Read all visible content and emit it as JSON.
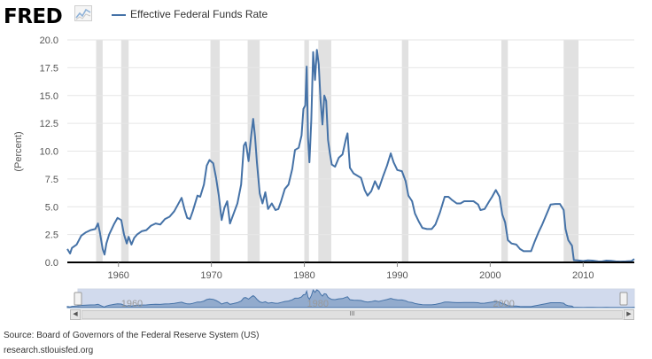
{
  "header": {
    "logo_text": "FRED",
    "logo_icon": "line-chart-icon",
    "legend_label": "Effective Federal Funds Rate",
    "legend_color": "#4572A7"
  },
  "chart_data": {
    "type": "line",
    "title": "",
    "ylabel": "(Percent)",
    "xlabel": "",
    "xlim": [
      1954.5,
      2015.5
    ],
    "ylim": [
      0,
      20
    ],
    "yticks": [
      "0.0",
      "2.5",
      "5.0",
      "7.5",
      "10.0",
      "12.5",
      "15.0",
      "17.5",
      "20.0"
    ],
    "xticks": [
      "1960",
      "1970",
      "1980",
      "1990",
      "2000",
      "2010"
    ],
    "grid": "horizontal",
    "recessions": [
      [
        1957.6,
        1958.3
      ],
      [
        1960.3,
        1961.1
      ],
      [
        1969.9,
        1970.9
      ],
      [
        1973.9,
        1975.2
      ],
      [
        1980.0,
        1980.5
      ],
      [
        1981.5,
        1982.9
      ],
      [
        1990.5,
        1991.2
      ],
      [
        2001.2,
        2001.9
      ],
      [
        2007.9,
        2009.5
      ]
    ],
    "series": [
      {
        "name": "Effective Federal Funds Rate",
        "color": "#4572A7",
        "points": [
          [
            1954.5,
            1.2
          ],
          [
            1954.8,
            0.8
          ],
          [
            1955.0,
            1.3
          ],
          [
            1955.5,
            1.6
          ],
          [
            1956.0,
            2.4
          ],
          [
            1956.5,
            2.7
          ],
          [
            1957.0,
            2.9
          ],
          [
            1957.5,
            3.0
          ],
          [
            1957.8,
            3.5
          ],
          [
            1958.0,
            2.7
          ],
          [
            1958.3,
            1.2
          ],
          [
            1958.5,
            0.7
          ],
          [
            1958.7,
            1.7
          ],
          [
            1959.0,
            2.5
          ],
          [
            1959.5,
            3.4
          ],
          [
            1959.9,
            4.0
          ],
          [
            1960.3,
            3.8
          ],
          [
            1960.6,
            2.5
          ],
          [
            1960.9,
            1.7
          ],
          [
            1961.1,
            2.3
          ],
          [
            1961.4,
            1.6
          ],
          [
            1961.7,
            2.2
          ],
          [
            1962.0,
            2.5
          ],
          [
            1962.5,
            2.8
          ],
          [
            1963.0,
            2.9
          ],
          [
            1963.5,
            3.3
          ],
          [
            1964.0,
            3.5
          ],
          [
            1964.5,
            3.4
          ],
          [
            1965.0,
            3.9
          ],
          [
            1965.5,
            4.1
          ],
          [
            1966.0,
            4.6
          ],
          [
            1966.4,
            5.2
          ],
          [
            1966.8,
            5.8
          ],
          [
            1967.1,
            4.8
          ],
          [
            1967.4,
            4.0
          ],
          [
            1967.7,
            3.9
          ],
          [
            1968.0,
            4.6
          ],
          [
            1968.5,
            6.0
          ],
          [
            1968.8,
            5.9
          ],
          [
            1969.2,
            7.0
          ],
          [
            1969.5,
            8.7
          ],
          [
            1969.8,
            9.2
          ],
          [
            1970.2,
            8.9
          ],
          [
            1970.5,
            7.6
          ],
          [
            1970.8,
            6.0
          ],
          [
            1971.1,
            3.8
          ],
          [
            1971.4,
            4.9
          ],
          [
            1971.7,
            5.5
          ],
          [
            1972.0,
            3.5
          ],
          [
            1972.4,
            4.4
          ],
          [
            1972.8,
            5.3
          ],
          [
            1973.2,
            7.0
          ],
          [
            1973.5,
            10.5
          ],
          [
            1973.7,
            10.8
          ],
          [
            1974.0,
            9.1
          ],
          [
            1974.3,
            11.5
          ],
          [
            1974.5,
            12.9
          ],
          [
            1974.7,
            11.3
          ],
          [
            1974.9,
            9.0
          ],
          [
            1975.2,
            6.2
          ],
          [
            1975.5,
            5.3
          ],
          [
            1975.8,
            6.3
          ],
          [
            1976.1,
            4.8
          ],
          [
            1976.5,
            5.3
          ],
          [
            1976.9,
            4.7
          ],
          [
            1977.2,
            4.8
          ],
          [
            1977.5,
            5.5
          ],
          [
            1977.9,
            6.6
          ],
          [
            1978.3,
            7.0
          ],
          [
            1978.7,
            8.4
          ],
          [
            1979.0,
            10.1
          ],
          [
            1979.4,
            10.3
          ],
          [
            1979.7,
            11.4
          ],
          [
            1979.9,
            13.8
          ],
          [
            1980.1,
            14.1
          ],
          [
            1980.25,
            17.6
          ],
          [
            1980.4,
            11.2
          ],
          [
            1980.55,
            9.0
          ],
          [
            1980.75,
            12.8
          ],
          [
            1980.95,
            18.9
          ],
          [
            1981.15,
            16.4
          ],
          [
            1981.35,
            19.1
          ],
          [
            1981.55,
            17.8
          ],
          [
            1981.75,
            14.5
          ],
          [
            1981.95,
            12.4
          ],
          [
            1982.15,
            15.0
          ],
          [
            1982.35,
            14.5
          ],
          [
            1982.55,
            11.0
          ],
          [
            1982.75,
            9.8
          ],
          [
            1982.95,
            8.8
          ],
          [
            1983.3,
            8.6
          ],
          [
            1983.7,
            9.4
          ],
          [
            1984.1,
            9.7
          ],
          [
            1984.5,
            11.2
          ],
          [
            1984.65,
            11.6
          ],
          [
            1984.9,
            8.5
          ],
          [
            1985.3,
            8.0
          ],
          [
            1985.7,
            7.8
          ],
          [
            1986.1,
            7.6
          ],
          [
            1986.5,
            6.5
          ],
          [
            1986.8,
            6.0
          ],
          [
            1987.2,
            6.4
          ],
          [
            1987.6,
            7.3
          ],
          [
            1988.0,
            6.6
          ],
          [
            1988.5,
            7.8
          ],
          [
            1988.9,
            8.7
          ],
          [
            1989.3,
            9.8
          ],
          [
            1989.6,
            9.0
          ],
          [
            1990.0,
            8.3
          ],
          [
            1990.5,
            8.2
          ],
          [
            1990.9,
            7.3
          ],
          [
            1991.2,
            6.0
          ],
          [
            1991.6,
            5.5
          ],
          [
            1991.9,
            4.4
          ],
          [
            1992.3,
            3.7
          ],
          [
            1992.7,
            3.1
          ],
          [
            1993.2,
            3.0
          ],
          [
            1993.7,
            3.0
          ],
          [
            1994.1,
            3.4
          ],
          [
            1994.6,
            4.5
          ],
          [
            1995.1,
            5.9
          ],
          [
            1995.5,
            5.9
          ],
          [
            1995.9,
            5.6
          ],
          [
            1996.4,
            5.3
          ],
          [
            1996.8,
            5.3
          ],
          [
            1997.2,
            5.5
          ],
          [
            1997.7,
            5.5
          ],
          [
            1998.2,
            5.5
          ],
          [
            1998.7,
            5.2
          ],
          [
            1998.95,
            4.7
          ],
          [
            1999.4,
            4.8
          ],
          [
            1999.9,
            5.5
          ],
          [
            2000.2,
            5.9
          ],
          [
            2000.6,
            6.5
          ],
          [
            2001.0,
            5.9
          ],
          [
            2001.3,
            4.3
          ],
          [
            2001.6,
            3.6
          ],
          [
            2001.9,
            2.0
          ],
          [
            2002.3,
            1.7
          ],
          [
            2002.8,
            1.6
          ],
          [
            2003.2,
            1.2
          ],
          [
            2003.6,
            1.0
          ],
          [
            2004.0,
            1.0
          ],
          [
            2004.4,
            1.0
          ],
          [
            2004.8,
            1.9
          ],
          [
            2005.2,
            2.7
          ],
          [
            2005.6,
            3.4
          ],
          [
            2006.0,
            4.2
          ],
          [
            2006.5,
            5.2
          ],
          [
            2007.0,
            5.25
          ],
          [
            2007.5,
            5.25
          ],
          [
            2007.9,
            4.7
          ],
          [
            2008.1,
            3.0
          ],
          [
            2008.4,
            2.0
          ],
          [
            2008.8,
            1.5
          ],
          [
            2009.0,
            0.2
          ],
          [
            2009.4,
            0.18
          ],
          [
            2010.0,
            0.12
          ],
          [
            2010.5,
            0.18
          ],
          [
            2011.0,
            0.16
          ],
          [
            2011.6,
            0.09
          ],
          [
            2012.0,
            0.08
          ],
          [
            2012.5,
            0.16
          ],
          [
            2013.0,
            0.14
          ],
          [
            2013.5,
            0.09
          ],
          [
            2014.0,
            0.07
          ],
          [
            2014.6,
            0.09
          ],
          [
            2015.2,
            0.12
          ],
          [
            2015.5,
            0.3
          ]
        ]
      }
    ]
  },
  "navigator": {
    "labels": [
      "1960",
      "1980",
      "2000"
    ],
    "scroll_thumb_label": "III"
  },
  "footer": {
    "source": "Source: Board of Governors of the Federal Reserve System (US)",
    "site": "research.stlouisfed.org"
  }
}
